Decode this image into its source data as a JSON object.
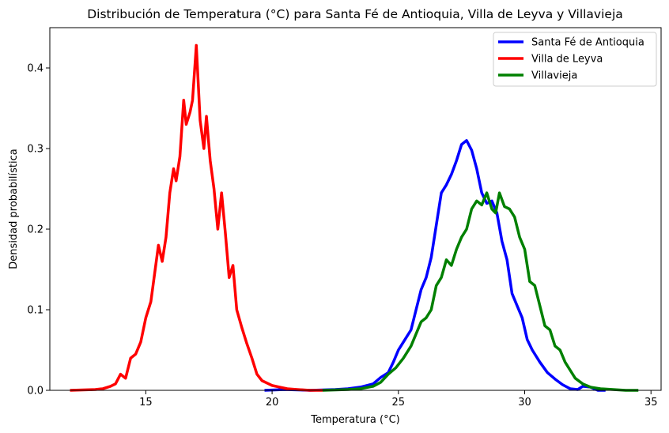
{
  "chart_data": {
    "type": "line",
    "title": "Distribución de Temperatura (°C) para Santa Fé de Antioquia, Villa de Leyva y Villavieja",
    "xlabel": "Temperatura (°C)",
    "ylabel": "Densidad probabilística",
    "xlim": [
      11.2,
      35.4
    ],
    "ylim": [
      0,
      0.45
    ],
    "xticks": [
      15,
      20,
      25,
      30,
      35
    ],
    "yticks": [
      0.0,
      0.1,
      0.2,
      0.3,
      0.4
    ],
    "xtick_labels": [
      "15",
      "20",
      "25",
      "30",
      "35"
    ],
    "ytick_labels": [
      "0.0",
      "0.1",
      "0.2",
      "0.3",
      "0.4"
    ],
    "grid": false,
    "legend_position": "top-right",
    "series": [
      {
        "name": "Santa Fé de Antioquia",
        "color": "#0000ff",
        "points": [
          [
            19.7,
            0.0
          ],
          [
            20.5,
            0.001
          ],
          [
            21.5,
            0.0
          ],
          [
            22.5,
            0.001
          ],
          [
            23.0,
            0.002
          ],
          [
            23.5,
            0.004
          ],
          [
            24.0,
            0.008
          ],
          [
            24.3,
            0.016
          ],
          [
            24.6,
            0.022
          ],
          [
            24.8,
            0.035
          ],
          [
            25.0,
            0.05
          ],
          [
            25.3,
            0.065
          ],
          [
            25.5,
            0.075
          ],
          [
            25.7,
            0.1
          ],
          [
            25.9,
            0.125
          ],
          [
            26.1,
            0.14
          ],
          [
            26.3,
            0.165
          ],
          [
            26.4,
            0.185
          ],
          [
            26.55,
            0.215
          ],
          [
            26.7,
            0.245
          ],
          [
            26.9,
            0.255
          ],
          [
            27.1,
            0.268
          ],
          [
            27.3,
            0.285
          ],
          [
            27.5,
            0.305
          ],
          [
            27.7,
            0.31
          ],
          [
            27.9,
            0.298
          ],
          [
            28.1,
            0.275
          ],
          [
            28.3,
            0.245
          ],
          [
            28.5,
            0.232
          ],
          [
            28.7,
            0.235
          ],
          [
            28.9,
            0.22
          ],
          [
            29.1,
            0.185
          ],
          [
            29.3,
            0.162
          ],
          [
            29.5,
            0.12
          ],
          [
            29.7,
            0.105
          ],
          [
            29.9,
            0.09
          ],
          [
            30.1,
            0.063
          ],
          [
            30.3,
            0.05
          ],
          [
            30.6,
            0.035
          ],
          [
            30.9,
            0.022
          ],
          [
            31.2,
            0.014
          ],
          [
            31.5,
            0.007
          ],
          [
            31.8,
            0.002
          ],
          [
            32.1,
            0.001
          ],
          [
            32.3,
            0.005
          ],
          [
            32.6,
            0.004
          ],
          [
            32.9,
            0.0
          ],
          [
            33.2,
            0.0
          ]
        ]
      },
      {
        "name": "Villa de Leyva",
        "color": "#ff0000",
        "points": [
          [
            12.0,
            0.0
          ],
          [
            12.5,
            0.0005
          ],
          [
            13.0,
            0.001
          ],
          [
            13.3,
            0.002
          ],
          [
            13.6,
            0.005
          ],
          [
            13.8,
            0.008
          ],
          [
            14.0,
            0.02
          ],
          [
            14.2,
            0.015
          ],
          [
            14.4,
            0.04
          ],
          [
            14.6,
            0.045
          ],
          [
            14.8,
            0.06
          ],
          [
            15.0,
            0.09
          ],
          [
            15.2,
            0.11
          ],
          [
            15.35,
            0.145
          ],
          [
            15.5,
            0.18
          ],
          [
            15.65,
            0.16
          ],
          [
            15.8,
            0.19
          ],
          [
            15.95,
            0.245
          ],
          [
            16.1,
            0.275
          ],
          [
            16.2,
            0.26
          ],
          [
            16.35,
            0.29
          ],
          [
            16.5,
            0.36
          ],
          [
            16.6,
            0.33
          ],
          [
            16.75,
            0.345
          ],
          [
            16.85,
            0.36
          ],
          [
            17.0,
            0.428
          ],
          [
            17.15,
            0.335
          ],
          [
            17.3,
            0.3
          ],
          [
            17.4,
            0.34
          ],
          [
            17.55,
            0.285
          ],
          [
            17.7,
            0.25
          ],
          [
            17.85,
            0.2
          ],
          [
            18.0,
            0.245
          ],
          [
            18.15,
            0.195
          ],
          [
            18.3,
            0.14
          ],
          [
            18.45,
            0.155
          ],
          [
            18.6,
            0.1
          ],
          [
            18.8,
            0.078
          ],
          [
            19.0,
            0.058
          ],
          [
            19.2,
            0.04
          ],
          [
            19.4,
            0.02
          ],
          [
            19.6,
            0.012
          ],
          [
            19.8,
            0.009
          ],
          [
            20.0,
            0.006
          ],
          [
            20.3,
            0.004
          ],
          [
            20.6,
            0.002
          ],
          [
            21.0,
            0.001
          ],
          [
            21.5,
            0.0
          ],
          [
            22.0,
            0.0
          ]
        ]
      },
      {
        "name": "Villavieja",
        "color": "#008000",
        "points": [
          [
            22.0,
            0.0
          ],
          [
            22.5,
            0.0005
          ],
          [
            23.0,
            0.001
          ],
          [
            23.5,
            0.002
          ],
          [
            24.0,
            0.005
          ],
          [
            24.3,
            0.01
          ],
          [
            24.6,
            0.02
          ],
          [
            24.9,
            0.028
          ],
          [
            25.2,
            0.04
          ],
          [
            25.5,
            0.055
          ],
          [
            25.7,
            0.07
          ],
          [
            25.9,
            0.085
          ],
          [
            26.1,
            0.09
          ],
          [
            26.3,
            0.1
          ],
          [
            26.5,
            0.13
          ],
          [
            26.7,
            0.14
          ],
          [
            26.9,
            0.162
          ],
          [
            27.1,
            0.155
          ],
          [
            27.3,
            0.175
          ],
          [
            27.5,
            0.19
          ],
          [
            27.7,
            0.2
          ],
          [
            27.9,
            0.225
          ],
          [
            28.1,
            0.235
          ],
          [
            28.3,
            0.23
          ],
          [
            28.5,
            0.245
          ],
          [
            28.7,
            0.225
          ],
          [
            28.85,
            0.22
          ],
          [
            29.0,
            0.245
          ],
          [
            29.2,
            0.228
          ],
          [
            29.4,
            0.225
          ],
          [
            29.6,
            0.215
          ],
          [
            29.8,
            0.19
          ],
          [
            30.0,
            0.175
          ],
          [
            30.2,
            0.135
          ],
          [
            30.4,
            0.13
          ],
          [
            30.6,
            0.105
          ],
          [
            30.8,
            0.08
          ],
          [
            31.0,
            0.075
          ],
          [
            31.2,
            0.055
          ],
          [
            31.4,
            0.05
          ],
          [
            31.6,
            0.035
          ],
          [
            31.8,
            0.025
          ],
          [
            32.0,
            0.015
          ],
          [
            32.3,
            0.008
          ],
          [
            32.6,
            0.004
          ],
          [
            33.0,
            0.002
          ],
          [
            33.5,
            0.001
          ],
          [
            34.0,
            0.0
          ],
          [
            34.5,
            0.0
          ]
        ]
      }
    ]
  }
}
